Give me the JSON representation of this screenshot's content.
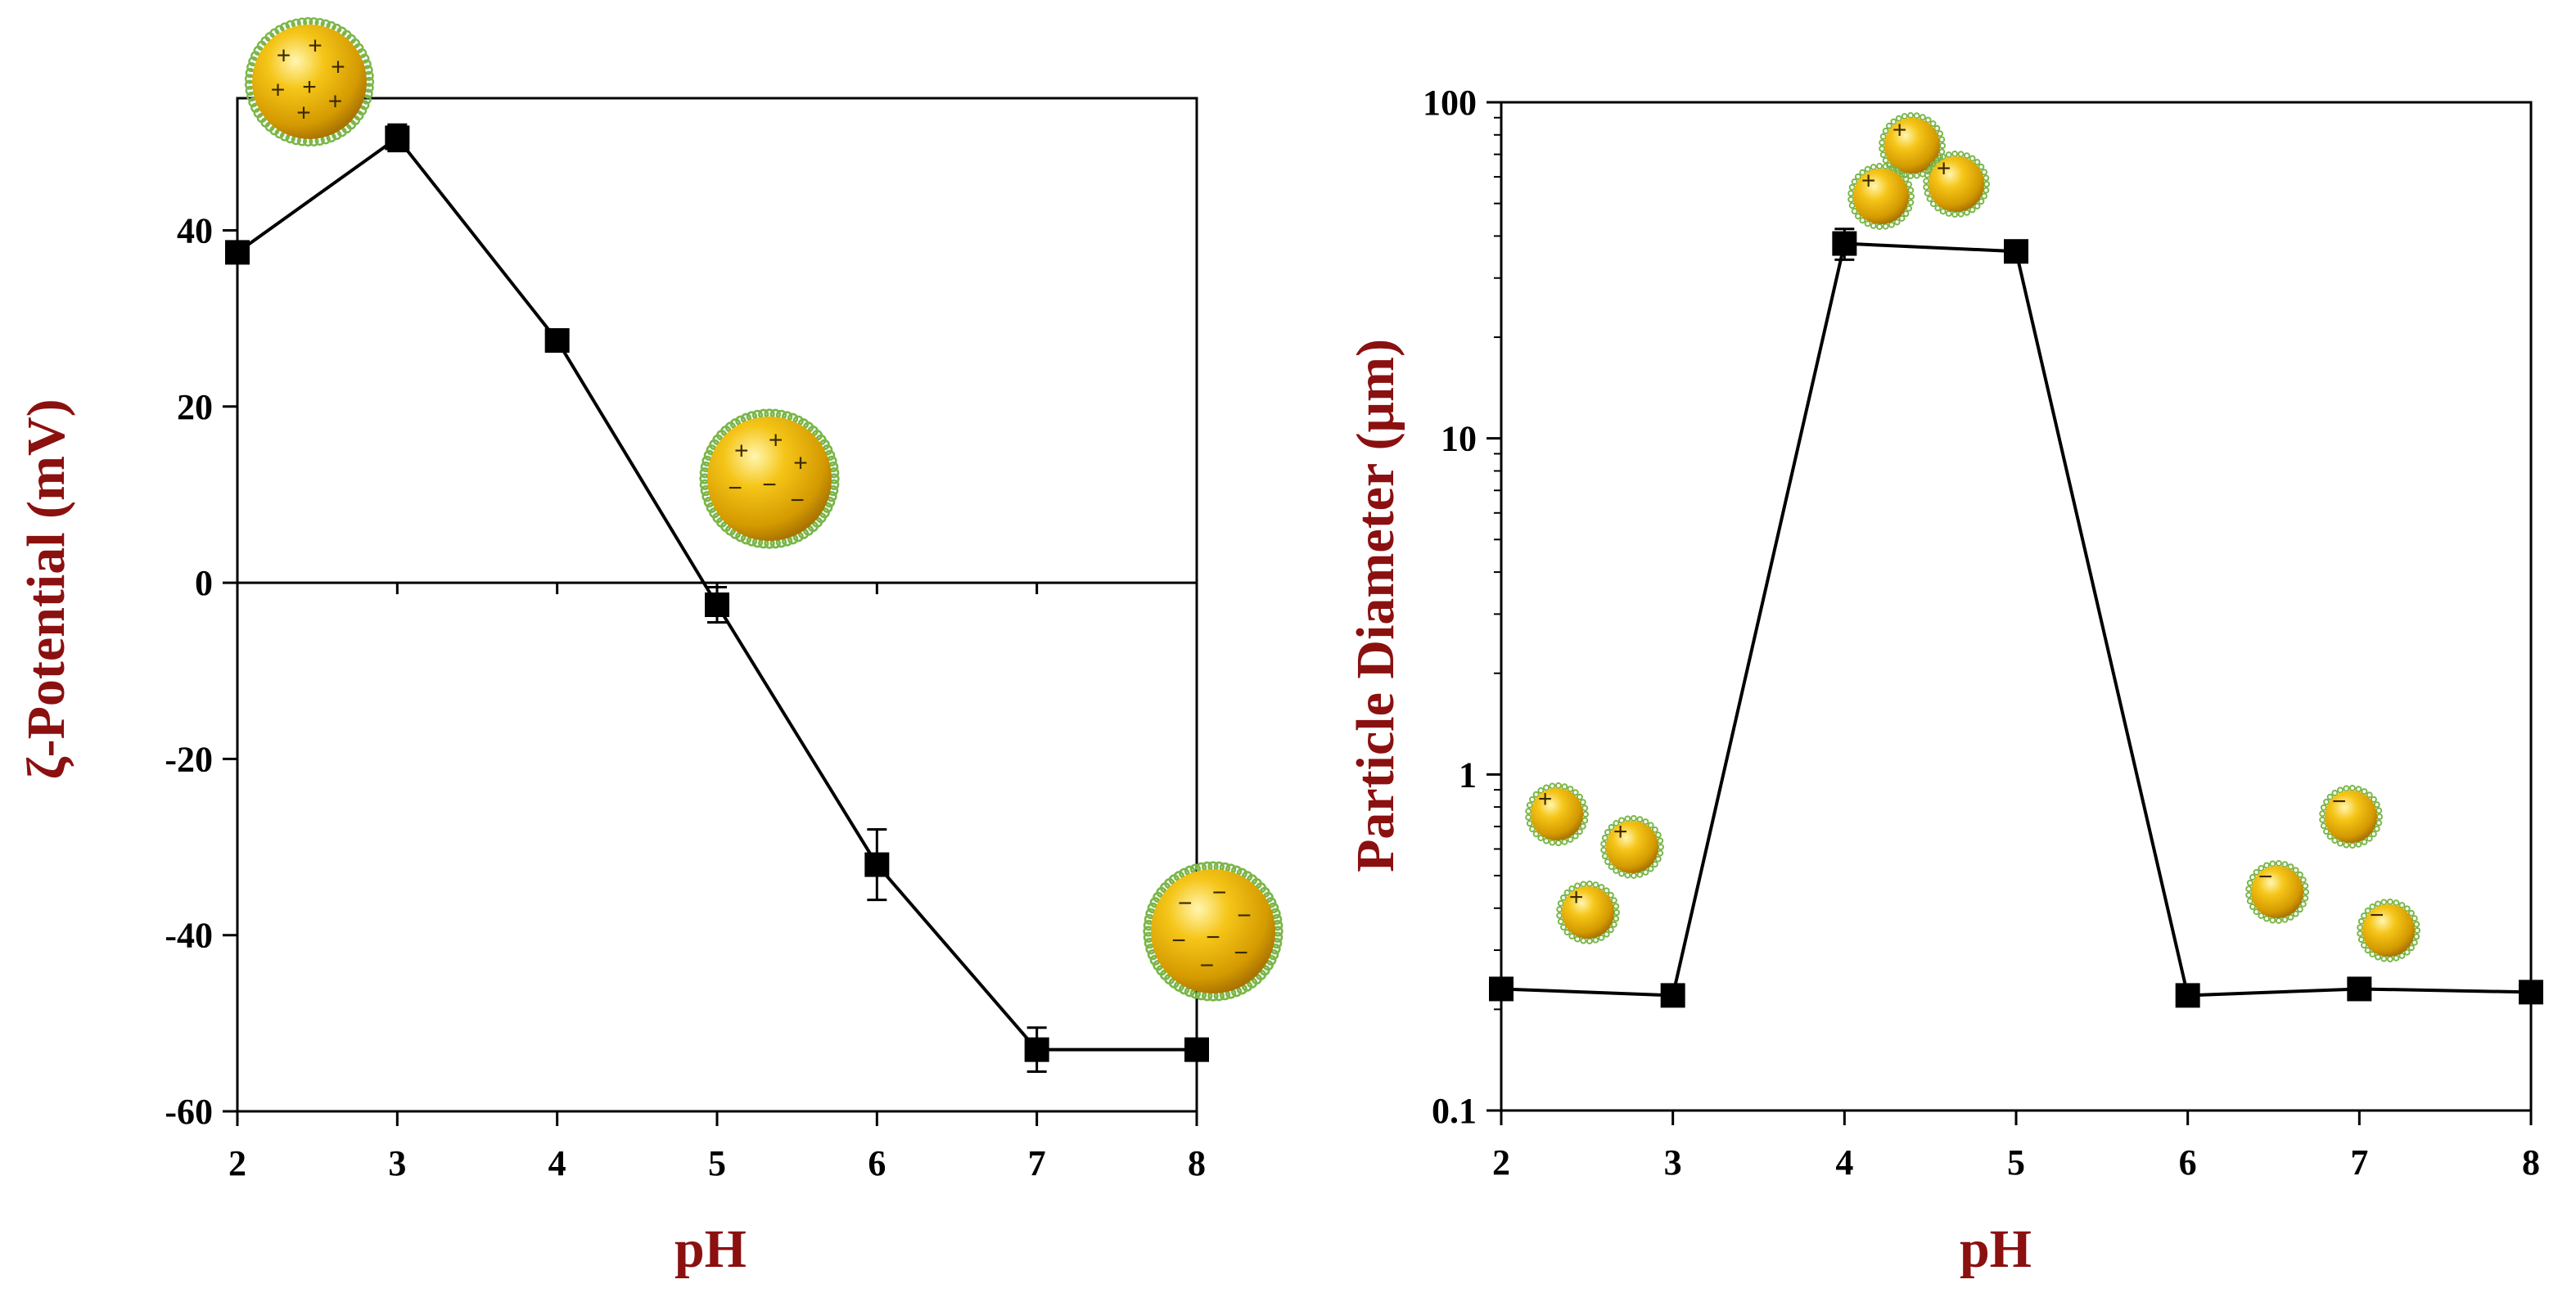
{
  "chart_data": [
    {
      "type": "line",
      "title": "",
      "xlabel": "pH",
      "ylabel": "ζ-Potential (mV)",
      "xlim": [
        2,
        8
      ],
      "ylim": [
        -60,
        55
      ],
      "xticks": [
        "2",
        "3",
        "4",
        "5",
        "6",
        "7",
        "8"
      ],
      "yticks": [
        "40",
        "20",
        "0",
        "-20",
        "-40",
        "-60"
      ],
      "x": [
        2,
        3,
        4,
        5,
        6,
        7,
        8
      ],
      "series": [
        {
          "name": "ζ-Potential",
          "values": [
            37.5,
            50.5,
            27.5,
            -2.5,
            -32,
            -53,
            -53
          ],
          "errors": [
            0.5,
            1.5,
            0.5,
            2,
            4,
            2.5,
            0.5
          ]
        }
      ],
      "zero_line": true
    },
    {
      "type": "line",
      "title": "",
      "xlabel": "pH",
      "ylabel": "Particle Diameter (μm)",
      "yscale": "log",
      "xlim": [
        2,
        8
      ],
      "ylim": [
        0.1,
        100
      ],
      "xticks": [
        "2",
        "3",
        "4",
        "5",
        "6",
        "7",
        "8"
      ],
      "yticks": [
        "100",
        "10",
        "1",
        "0.1"
      ],
      "x": [
        2,
        3,
        4,
        5,
        6,
        7,
        8
      ],
      "series": [
        {
          "name": "Particle Diameter",
          "values": [
            0.23,
            0.22,
            38,
            36,
            0.22,
            0.23,
            0.225
          ],
          "errors": [
            0,
            0,
            4,
            0,
            0,
            0,
            0
          ]
        }
      ]
    }
  ],
  "illustrations": {
    "left": [
      {
        "name": "positive-particle-icon",
        "charges": [
          "+",
          "+",
          "+",
          "+",
          "+",
          "+",
          "+"
        ]
      },
      {
        "name": "neutral-particle-icon",
        "charges": [
          "+",
          "+",
          "+",
          "−",
          "−",
          "−"
        ]
      },
      {
        "name": "negative-particle-icon",
        "charges": [
          "−",
          "−",
          "−",
          "−",
          "−",
          "−",
          "−"
        ]
      }
    ],
    "right": [
      {
        "name": "dispersed-positive-particles-icon",
        "charge": "+"
      },
      {
        "name": "aggregated-particles-icon",
        "charge": "+"
      },
      {
        "name": "dispersed-negative-particles-icon",
        "charge": "−"
      }
    ]
  },
  "colors": {
    "axis_title": "#8b1010",
    "line": "#000000",
    "marker": "#000000",
    "particle_core": "#e8b000",
    "particle_shell": "#7ab648"
  }
}
